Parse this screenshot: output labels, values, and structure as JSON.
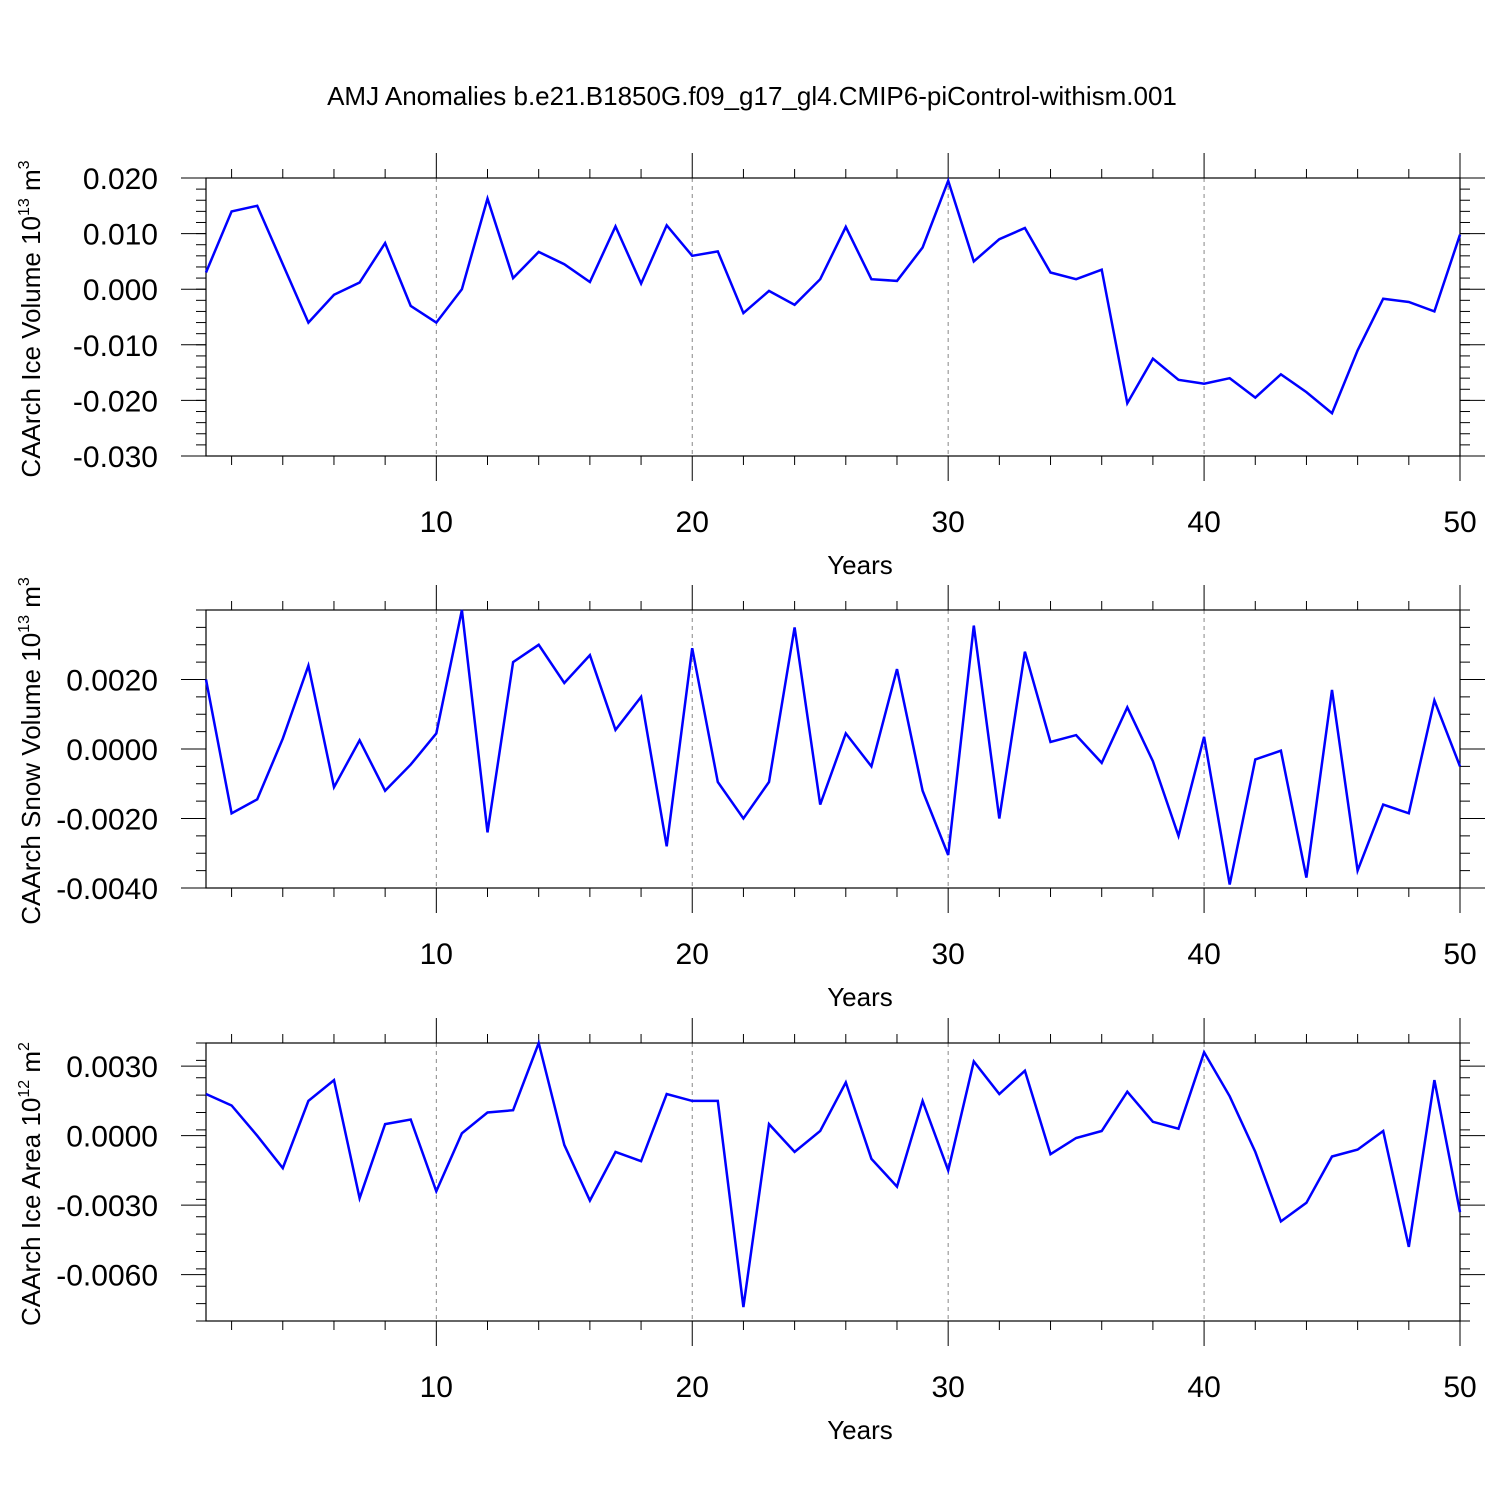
{
  "title": "AMJ Anomalies b.e21.B1850G.f09_g17_gl4.CMIP6-piControl-withism.001",
  "line_color": "#0000ff",
  "chart_data": [
    {
      "type": "line",
      "ylabel": {
        "text": "CAArch Ice Volume 10",
        "sup": "13",
        "unit": " m",
        "unit_sup": "3"
      },
      "xlabel": "Years",
      "xlim": [
        1,
        50
      ],
      "ylim": [
        -0.03,
        0.02
      ],
      "xticks": [
        10,
        20,
        30,
        40,
        50
      ],
      "yticks": [
        0.02,
        0.01,
        0.0,
        -0.01,
        -0.02,
        -0.03
      ],
      "ytick_labels": [
        "0.020",
        "0.010",
        "0.000",
        "-0.010",
        "-0.020",
        "-0.030"
      ],
      "x": [
        1,
        2,
        3,
        4,
        5,
        6,
        7,
        8,
        9,
        10,
        11,
        12,
        13,
        14,
        15,
        16,
        17,
        18,
        19,
        20,
        21,
        22,
        23,
        24,
        25,
        26,
        27,
        28,
        29,
        30,
        31,
        32,
        33,
        34,
        35,
        36,
        37,
        38,
        39,
        40,
        41,
        42,
        43,
        44,
        45,
        46,
        47,
        48,
        49,
        50
      ],
      "values": [
        0.003,
        0.014,
        0.015,
        0.0045,
        -0.006,
        -0.001,
        0.0012,
        0.0083,
        -0.003,
        -0.006,
        0.0,
        0.0163,
        0.002,
        0.0067,
        0.0045,
        0.0013,
        0.0113,
        0.001,
        0.0115,
        0.006,
        0.0068,
        -0.0043,
        -0.0003,
        -0.0028,
        0.0018,
        0.0112,
        0.0018,
        0.0015,
        0.0075,
        0.0195,
        0.005,
        0.009,
        0.011,
        0.003,
        0.0018,
        0.0035,
        -0.0205,
        -0.0125,
        -0.0163,
        -0.017,
        -0.016,
        -0.0195,
        -0.0153,
        -0.0185,
        -0.0223,
        -0.011,
        -0.0017,
        -0.0023,
        -0.004,
        0.0098
      ]
    },
    {
      "type": "line",
      "ylabel": {
        "text": "CAArch Snow Volume 10",
        "sup": "13",
        "unit": " m",
        "unit_sup": "3"
      },
      "xlabel": "Years",
      "xlim": [
        1,
        50
      ],
      "ylim": [
        -0.004,
        0.004
      ],
      "xticks": [
        10,
        20,
        30,
        40,
        50
      ],
      "yticks": [
        0.002,
        0.0,
        -0.002,
        -0.004
      ],
      "ytick_labels": [
        "0.0020",
        "0.0000",
        "-0.0020",
        "-0.0040"
      ],
      "x": [
        1,
        2,
        3,
        4,
        5,
        6,
        7,
        8,
        9,
        10,
        11,
        12,
        13,
        14,
        15,
        16,
        17,
        18,
        19,
        20,
        21,
        22,
        23,
        24,
        25,
        26,
        27,
        28,
        29,
        30,
        31,
        32,
        33,
        34,
        35,
        36,
        37,
        38,
        39,
        40,
        41,
        42,
        43,
        44,
        45,
        46,
        47,
        48,
        49,
        50
      ],
      "values": [
        0.002,
        -0.00185,
        -0.00145,
        0.0003,
        0.0024,
        -0.0011,
        0.00025,
        -0.0012,
        -0.00045,
        0.00045,
        0.004,
        -0.0024,
        0.0025,
        0.003,
        0.0019,
        0.0027,
        0.00055,
        0.0015,
        -0.0028,
        0.0029,
        -0.00095,
        -0.002,
        -0.00095,
        0.0035,
        -0.0016,
        0.00045,
        -0.0005,
        0.0023,
        -0.0012,
        -0.00305,
        0.00355,
        -0.002,
        0.0028,
        0.0002,
        0.0004,
        -0.0004,
        0.0012,
        -0.00035,
        -0.0025,
        0.00035,
        -0.0039,
        -0.0003,
        -5e-05,
        -0.0037,
        0.0017,
        -0.0035,
        -0.0016,
        -0.00185,
        0.0014,
        -0.0005
      ]
    },
    {
      "type": "line",
      "ylabel": {
        "text": "CAArch Ice Area 10",
        "sup": "12",
        "unit": " m",
        "unit_sup": "2"
      },
      "xlabel": "Years",
      "xlim": [
        1,
        50
      ],
      "ylim": [
        -0.008,
        0.004
      ],
      "xticks": [
        10,
        20,
        30,
        40,
        50
      ],
      "yticks": [
        0.003,
        0.0,
        -0.003,
        -0.006
      ],
      "ytick_labels": [
        "0.0030",
        "0.0000",
        "-0.0030",
        "-0.0060"
      ],
      "x": [
        1,
        2,
        3,
        4,
        5,
        6,
        7,
        8,
        9,
        10,
        11,
        12,
        13,
        14,
        15,
        16,
        17,
        18,
        19,
        20,
        21,
        22,
        23,
        24,
        25,
        26,
        27,
        28,
        29,
        30,
        31,
        32,
        33,
        34,
        35,
        36,
        37,
        38,
        39,
        40,
        41,
        42,
        43,
        44,
        45,
        46,
        47,
        48,
        49,
        50
      ],
      "values": [
        0.0018,
        0.0013,
        0.0,
        -0.0014,
        0.0015,
        0.0024,
        -0.0027,
        0.0005,
        0.0007,
        -0.0024,
        0.0001,
        0.001,
        0.0011,
        0.004,
        -0.0004,
        -0.0028,
        -0.0007,
        -0.0011,
        0.0018,
        0.0015,
        0.0015,
        -0.0074,
        0.0005,
        -0.0007,
        0.0002,
        0.0023,
        -0.001,
        -0.0022,
        0.0015,
        -0.0015,
        0.0032,
        0.0018,
        0.0028,
        -0.0008,
        -0.0001,
        0.0002,
        0.0019,
        0.0006,
        0.0003,
        0.0036,
        0.0017,
        -0.0007,
        -0.0037,
        -0.0029,
        -0.0009,
        -0.0006,
        0.0002,
        -0.0048,
        0.0024,
        -0.0033
      ]
    }
  ]
}
